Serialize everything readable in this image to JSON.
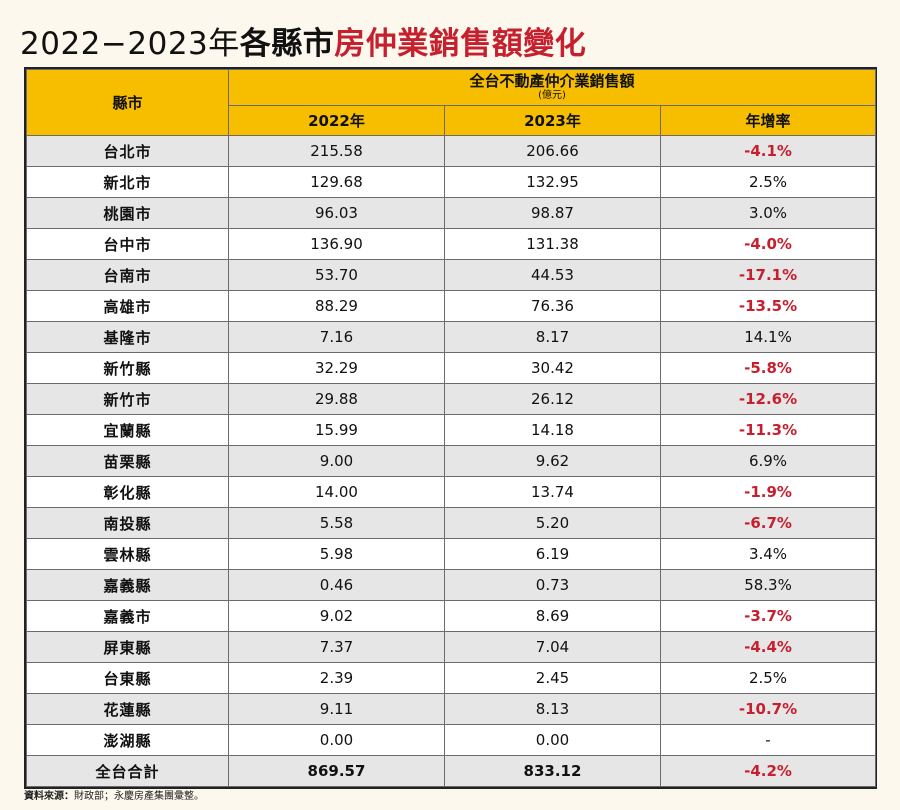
{
  "title": {
    "years": "2022−2023年",
    "part_black": "各縣市",
    "part_red": "房仲業銷售額變化"
  },
  "table": {
    "header": {
      "county": "縣市",
      "group": "全台不動產仲介業銷售額",
      "unit": "(億元)",
      "col_2022": "2022年",
      "col_2023": "2023年",
      "col_growth": "年增率"
    },
    "rows": [
      {
        "county": "台北市",
        "v2022": "215.58",
        "v2023": "206.66",
        "growth": "-4.1%"
      },
      {
        "county": "新北市",
        "v2022": "129.68",
        "v2023": "132.95",
        "growth": "2.5%"
      },
      {
        "county": "桃園市",
        "v2022": "96.03",
        "v2023": "98.87",
        "growth": "3.0%"
      },
      {
        "county": "台中市",
        "v2022": "136.90",
        "v2023": "131.38",
        "growth": "-4.0%"
      },
      {
        "county": "台南市",
        "v2022": "53.70",
        "v2023": "44.53",
        "growth": "-17.1%"
      },
      {
        "county": "高雄市",
        "v2022": "88.29",
        "v2023": "76.36",
        "growth": "-13.5%"
      },
      {
        "county": "基隆市",
        "v2022": "7.16",
        "v2023": "8.17",
        "growth": "14.1%"
      },
      {
        "county": "新竹縣",
        "v2022": "32.29",
        "v2023": "30.42",
        "growth": "-5.8%"
      },
      {
        "county": "新竹市",
        "v2022": "29.88",
        "v2023": "26.12",
        "growth": "-12.6%"
      },
      {
        "county": "宜蘭縣",
        "v2022": "15.99",
        "v2023": "14.18",
        "growth": "-11.3%"
      },
      {
        "county": "苗栗縣",
        "v2022": "9.00",
        "v2023": "9.62",
        "growth": "6.9%"
      },
      {
        "county": "彰化縣",
        "v2022": "14.00",
        "v2023": "13.74",
        "growth": "-1.9%"
      },
      {
        "county": "南投縣",
        "v2022": "5.58",
        "v2023": "5.20",
        "growth": "-6.7%"
      },
      {
        "county": "雲林縣",
        "v2022": "5.98",
        "v2023": "6.19",
        "growth": "3.4%"
      },
      {
        "county": "嘉義縣",
        "v2022": "0.46",
        "v2023": "0.73",
        "growth": "58.3%"
      },
      {
        "county": "嘉義市",
        "v2022": "9.02",
        "v2023": "8.69",
        "growth": "-3.7%"
      },
      {
        "county": "屏東縣",
        "v2022": "7.37",
        "v2023": "7.04",
        "growth": "-4.4%"
      },
      {
        "county": "台東縣",
        "v2022": "2.39",
        "v2023": "2.45",
        "growth": "2.5%"
      },
      {
        "county": "花蓮縣",
        "v2022": "9.11",
        "v2023": "8.13",
        "growth": "-10.7%"
      },
      {
        "county": "澎湖縣",
        "v2022": "0.00",
        "v2023": "0.00",
        "growth": "-"
      },
      {
        "county": "全台合計",
        "v2022": "869.57",
        "v2023": "833.12",
        "growth": "-4.2%"
      }
    ],
    "negative_color": "#c6202f",
    "header_color": "#f7be00"
  },
  "source": {
    "label": "資料來源：",
    "text": "財政部；永慶房產集團彙整。"
  }
}
